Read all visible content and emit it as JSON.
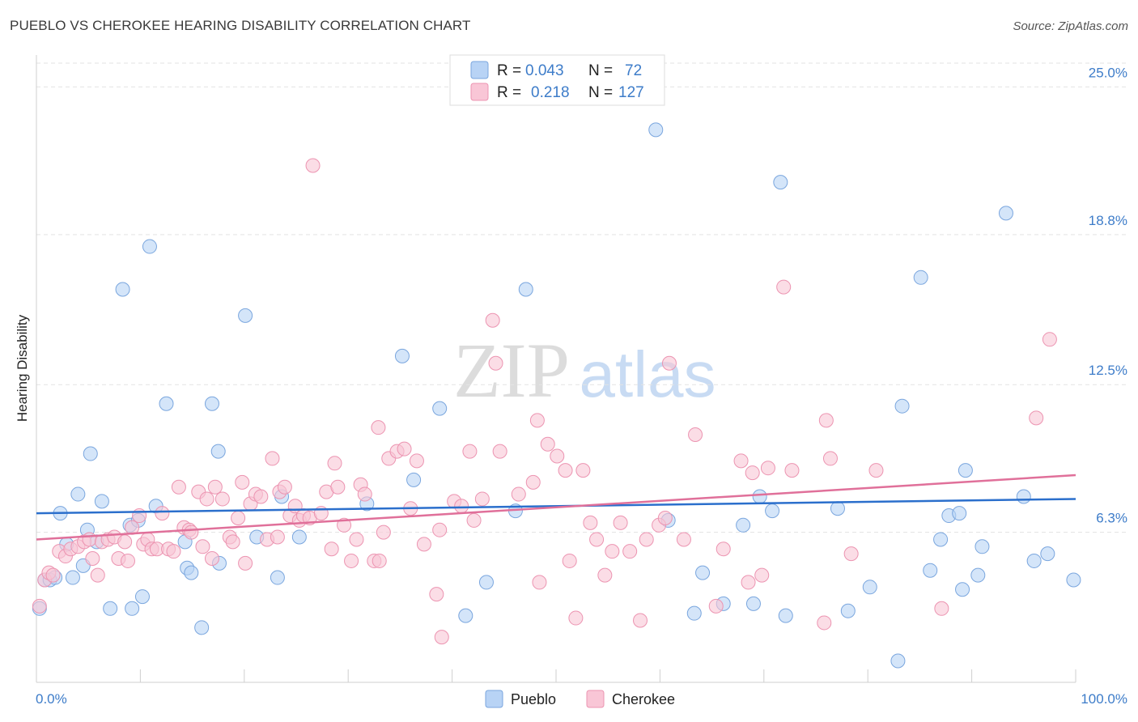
{
  "title": "PUEBLO VS CHEROKEE HEARING DISABILITY CORRELATION CHART",
  "source": "Source: ZipAtlas.com",
  "watermark": {
    "zip": "ZIP",
    "atlas": "atlas"
  },
  "legend": {
    "rows": [
      {
        "r_label": "R =",
        "r_value": "0.043",
        "n_label": "N =",
        "n_value": "72"
      },
      {
        "r_label": "R =",
        "r_value": "0.218",
        "n_label": "N =",
        "n_value": "127"
      }
    ]
  },
  "colors": {
    "pueblo_fill": "#b8d3f5",
    "pueblo_stroke": "#7aa6de",
    "pueblo_line": "#2b6fcc",
    "cherokee_fill": "#f9c6d6",
    "cherokee_stroke": "#ec94b1",
    "cherokee_line": "#e0709a",
    "tick": "#3d7cc9",
    "grid": "#e3e3e3"
  },
  "chart_data": {
    "type": "scatter",
    "title": "PUEBLO VS CHEROKEE HEARING DISABILITY CORRELATION CHART",
    "xlabel": "",
    "ylabel": "Hearing Disability",
    "xlim": [
      0,
      100
    ],
    "ylim": [
      0,
      26
    ],
    "x_tick_labels": [
      "0.0%",
      "100.0%"
    ],
    "y_ticks": [
      6.3,
      12.5,
      18.8,
      25.0
    ],
    "y_tick_labels": [
      "6.3%",
      "12.5%",
      "18.8%",
      "25.0%"
    ],
    "grid": true,
    "legend_position": "top-center",
    "series": [
      {
        "name": "Pueblo",
        "r": 0.043,
        "n": 72,
        "trend": [
          [
            0,
            7.1
          ],
          [
            100,
            7.7
          ]
        ],
        "points": [
          [
            0.3,
            3.1
          ],
          [
            0.8,
            4.3
          ],
          [
            1.3,
            4.3
          ],
          [
            1.8,
            4.4
          ],
          [
            2.3,
            7.1
          ],
          [
            2.9,
            5.8
          ],
          [
            3.5,
            4.4
          ],
          [
            4.0,
            7.9
          ],
          [
            4.5,
            4.9
          ],
          [
            4.9,
            6.4
          ],
          [
            5.2,
            9.6
          ],
          [
            5.8,
            5.9
          ],
          [
            6.3,
            7.6
          ],
          [
            7.1,
            3.1
          ],
          [
            8.3,
            16.5
          ],
          [
            9.0,
            6.6
          ],
          [
            9.2,
            3.1
          ],
          [
            9.8,
            6.8
          ],
          [
            10.2,
            3.6
          ],
          [
            10.9,
            18.3
          ],
          [
            11.5,
            7.4
          ],
          [
            12.5,
            11.7
          ],
          [
            14.3,
            5.9
          ],
          [
            14.5,
            4.8
          ],
          [
            14.9,
            4.6
          ],
          [
            15.9,
            2.3
          ],
          [
            16.9,
            11.7
          ],
          [
            17.5,
            9.7
          ],
          [
            17.6,
            5.0
          ],
          [
            20.1,
            15.4
          ],
          [
            21.2,
            6.1
          ],
          [
            23.2,
            4.4
          ],
          [
            23.6,
            7.8
          ],
          [
            25.3,
            6.1
          ],
          [
            31.8,
            7.5
          ],
          [
            35.2,
            13.7
          ],
          [
            36.3,
            8.5
          ],
          [
            38.8,
            11.5
          ],
          [
            41.3,
            2.8
          ],
          [
            43.3,
            4.2
          ],
          [
            46.1,
            7.2
          ],
          [
            47.1,
            16.5
          ],
          [
            59.6,
            23.2
          ],
          [
            60.8,
            6.8
          ],
          [
            63.3,
            2.9
          ],
          [
            64.1,
            4.6
          ],
          [
            66.1,
            3.3
          ],
          [
            68.0,
            6.6
          ],
          [
            69.0,
            3.3
          ],
          [
            69.6,
            7.8
          ],
          [
            70.8,
            7.2
          ],
          [
            71.6,
            21.0
          ],
          [
            72.1,
            2.8
          ],
          [
            77.1,
            7.3
          ],
          [
            78.1,
            3.0
          ],
          [
            80.2,
            4.0
          ],
          [
            82.9,
            0.9
          ],
          [
            83.3,
            11.6
          ],
          [
            85.1,
            17.0
          ],
          [
            86.0,
            4.7
          ],
          [
            87.0,
            6.0
          ],
          [
            87.8,
            7.0
          ],
          [
            88.8,
            7.1
          ],
          [
            89.1,
            3.9
          ],
          [
            89.4,
            8.9
          ],
          [
            90.6,
            4.5
          ],
          [
            91.0,
            5.7
          ],
          [
            93.3,
            19.7
          ],
          [
            95.0,
            7.8
          ],
          [
            96.0,
            5.1
          ],
          [
            97.3,
            5.4
          ],
          [
            99.8,
            4.3
          ]
        ]
      },
      {
        "name": "Cherokee",
        "r": 0.218,
        "n": 127,
        "trend": [
          [
            0,
            6.0
          ],
          [
            100,
            8.7
          ]
        ],
        "points": [
          [
            0.3,
            3.2
          ],
          [
            0.8,
            4.3
          ],
          [
            1.2,
            4.6
          ],
          [
            1.6,
            4.5
          ],
          [
            2.2,
            5.5
          ],
          [
            2.8,
            5.3
          ],
          [
            3.3,
            5.6
          ],
          [
            4.0,
            5.7
          ],
          [
            4.6,
            5.9
          ],
          [
            5.1,
            6.0
          ],
          [
            5.4,
            5.2
          ],
          [
            5.9,
            4.5
          ],
          [
            6.3,
            5.9
          ],
          [
            6.9,
            6.0
          ],
          [
            7.5,
            6.1
          ],
          [
            7.9,
            5.2
          ],
          [
            8.5,
            5.9
          ],
          [
            8.8,
            5.1
          ],
          [
            9.2,
            6.5
          ],
          [
            9.9,
            7.0
          ],
          [
            10.3,
            5.8
          ],
          [
            10.7,
            6.0
          ],
          [
            11.1,
            5.6
          ],
          [
            11.6,
            5.6
          ],
          [
            12.1,
            7.1
          ],
          [
            12.7,
            5.6
          ],
          [
            13.2,
            5.5
          ],
          [
            13.7,
            8.2
          ],
          [
            14.2,
            6.5
          ],
          [
            14.7,
            6.4
          ],
          [
            14.9,
            6.3
          ],
          [
            15.6,
            8.0
          ],
          [
            16.0,
            5.7
          ],
          [
            16.4,
            7.7
          ],
          [
            16.9,
            5.2
          ],
          [
            17.2,
            8.2
          ],
          [
            17.9,
            7.7
          ],
          [
            18.6,
            6.1
          ],
          [
            18.9,
            5.9
          ],
          [
            19.4,
            6.9
          ],
          [
            19.8,
            8.4
          ],
          [
            20.1,
            5.0
          ],
          [
            20.6,
            7.5
          ],
          [
            21.1,
            7.9
          ],
          [
            21.6,
            7.8
          ],
          [
            22.2,
            6.0
          ],
          [
            22.7,
            9.4
          ],
          [
            23.4,
            8.0
          ],
          [
            23.9,
            8.2
          ],
          [
            24.4,
            7.0
          ],
          [
            24.9,
            7.4
          ],
          [
            25.3,
            6.8
          ],
          [
            25.7,
            7.0
          ],
          [
            26.3,
            6.9
          ],
          [
            26.6,
            21.7
          ],
          [
            27.4,
            7.1
          ],
          [
            27.9,
            8.0
          ],
          [
            28.4,
            5.6
          ],
          [
            28.7,
            9.2
          ],
          [
            29.0,
            8.2
          ],
          [
            29.6,
            6.6
          ],
          [
            30.3,
            5.1
          ],
          [
            30.8,
            6.0
          ],
          [
            31.2,
            8.3
          ],
          [
            31.6,
            7.9
          ],
          [
            32.5,
            5.1
          ],
          [
            32.9,
            10.7
          ],
          [
            33.4,
            6.3
          ],
          [
            33.9,
            9.4
          ],
          [
            34.7,
            9.7
          ],
          [
            35.4,
            9.8
          ],
          [
            36.0,
            7.3
          ],
          [
            36.6,
            9.3
          ],
          [
            37.3,
            5.8
          ],
          [
            38.5,
            3.7
          ],
          [
            38.8,
            6.4
          ],
          [
            39.0,
            1.9
          ],
          [
            40.2,
            7.6
          ],
          [
            40.9,
            7.4
          ],
          [
            41.7,
            9.7
          ],
          [
            42.1,
            6.8
          ],
          [
            42.9,
            7.7
          ],
          [
            43.9,
            15.2
          ],
          [
            44.2,
            13.4
          ],
          [
            44.6,
            9.7
          ],
          [
            46.4,
            7.9
          ],
          [
            47.8,
            8.4
          ],
          [
            48.2,
            11.0
          ],
          [
            48.4,
            4.2
          ],
          [
            49.2,
            10.0
          ],
          [
            50.1,
            9.5
          ],
          [
            50.9,
            8.9
          ],
          [
            51.3,
            5.1
          ],
          [
            51.9,
            2.7
          ],
          [
            52.6,
            8.9
          ],
          [
            53.3,
            6.7
          ],
          [
            53.9,
            6.0
          ],
          [
            54.7,
            4.5
          ],
          [
            55.4,
            5.5
          ],
          [
            56.2,
            6.7
          ],
          [
            57.1,
            5.5
          ],
          [
            58.1,
            2.6
          ],
          [
            58.7,
            6.0
          ],
          [
            59.9,
            6.6
          ],
          [
            60.5,
            6.9
          ],
          [
            60.9,
            13.4
          ],
          [
            62.3,
            6.0
          ],
          [
            63.4,
            10.4
          ],
          [
            65.4,
            3.2
          ],
          [
            66.1,
            5.6
          ],
          [
            67.8,
            9.3
          ],
          [
            68.5,
            4.2
          ],
          [
            68.9,
            8.8
          ],
          [
            69.8,
            4.5
          ],
          [
            70.4,
            9.0
          ],
          [
            71.9,
            16.6
          ],
          [
            72.7,
            8.9
          ],
          [
            75.8,
            2.5
          ],
          [
            76.0,
            11.0
          ],
          [
            76.4,
            9.4
          ],
          [
            78.4,
            5.4
          ],
          [
            80.8,
            8.9
          ],
          [
            87.1,
            3.1
          ],
          [
            96.2,
            11.1
          ],
          [
            97.5,
            14.4
          ],
          [
            33.0,
            5.1
          ],
          [
            23.2,
            6.1
          ]
        ]
      }
    ]
  },
  "bottom_legend": [
    "Pueblo",
    "Cherokee"
  ]
}
